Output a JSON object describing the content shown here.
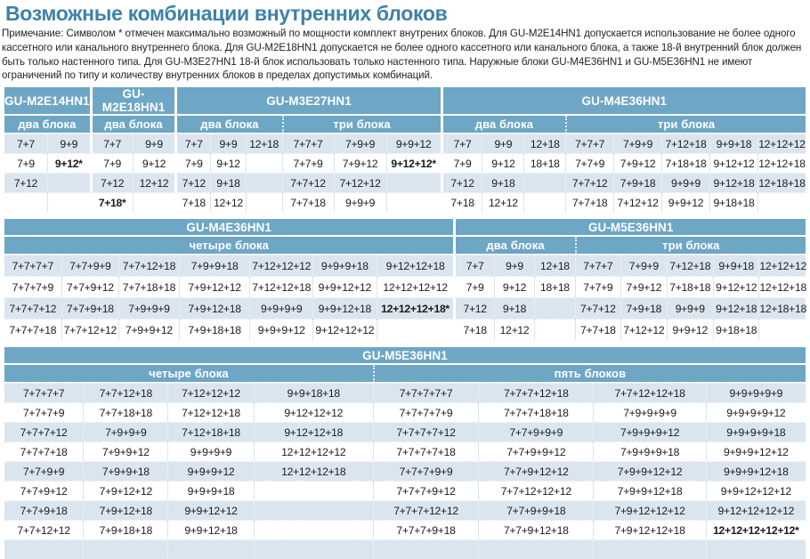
{
  "title": "Возможные комбинации внутренних блоков",
  "note": "Примечание: Символом * отмечен максимально возможный по мощности комплект внутрених блоков. Для GU-M2E14HN1 допускается использование не более одного кассетного или канального внутреннего блока. Для GU-M2E18HN1 допускается не более одного кассетного или канального блока, а также 18-й внутренний блок должен быть только настенного типа. Для GU-M3E27HN1 18-й блок использовать только настенного типа. Наружные блоки GU-M4E36HN1 и GU-M5E36HN1 не имеют ограничений по типу и количеству внутренних блоков в пределах допустимых комбинаций.",
  "colors": {
    "header_blue": "#6ea6c6",
    "row_alt_blue": "#dbe5ef",
    "title_blue": "#3e81a9",
    "text": "#1c1c1c"
  },
  "tables": [
    {
      "name": "combinations-table-1",
      "css": "t1",
      "sections": [
        {
          "product": "GU-M2E14HN1",
          "groups": [
            {
              "label": "два блока",
              "widths": [
                47,
                47
              ]
            }
          ]
        },
        {
          "product": "GU-M2E18HN1",
          "groups": [
            {
              "label": "два блока",
              "widths": [
                47,
                47
              ]
            }
          ]
        },
        {
          "product": "GU-M3E27HN1",
          "groups": [
            {
              "label": "два блока",
              "widths": [
                39,
                39,
                40
              ]
            },
            {
              "label": "три блока",
              "widths": [
                57,
                58,
                60
              ]
            }
          ]
        },
        {
          "product": "GU-M4E36HN1",
          "groups": [
            {
              "label": "два блока",
              "widths": [
                46,
                46,
                46
              ]
            },
            {
              "label": "три блока",
              "widths": [
                53,
                53,
                53,
                53,
                53
              ]
            }
          ]
        }
      ],
      "rows": [
        [
          "7+7",
          "9+9",
          "7+7",
          "9+9",
          "7+7",
          "9+9",
          "12+18",
          "7+7+7",
          "7+9+9",
          "9+9+12",
          "7+7",
          "9+9",
          "12+18",
          "7+7+7",
          "7+9+9",
          "7+12+18",
          "9+9+18",
          "12+12+12"
        ],
        [
          "7+9",
          "9+12*",
          "7+9",
          "9+12",
          "7+9",
          "9+12",
          "",
          "7+7+9",
          "7+9+12",
          "9+12+12*",
          "7+9",
          "9+12",
          "18+18",
          "7+7+9",
          "7+9+12",
          "7+18+18",
          "9+12+12",
          "12+12+18"
        ],
        [
          "7+12",
          "",
          "7+12",
          "12+12",
          "7+12",
          "9+18",
          "",
          "7+7+12",
          "7+12+12",
          "",
          "7+12",
          "9+18",
          "",
          "7+7+12",
          "7+9+18",
          "9+9+9",
          "9+12+18",
          "12+18+18"
        ],
        [
          "",
          "",
          "7+18*",
          "",
          "7+18",
          "12+12",
          "",
          "7+7+18",
          "9+9+9",
          "",
          "7+18",
          "12+12",
          "",
          "7+7+18",
          "7+12+12",
          "9+9+12",
          "9+18+18",
          ""
        ]
      ]
    },
    {
      "name": "combinations-table-2",
      "css": "t2",
      "sections": [
        {
          "product": "GU-M4E36HN1",
          "groups": [
            {
              "label": "четыре блока",
              "widths": [
                63,
                64,
                67,
                79,
                70,
                71,
                86
              ]
            }
          ]
        },
        {
          "product": "GU-M5E36HN1",
          "groups": [
            {
              "label": "два блока",
              "widths": [
                45,
                45,
                45
              ]
            },
            {
              "label": "три блока",
              "widths": [
                51,
                51,
                52,
                51,
                52
              ]
            }
          ]
        }
      ],
      "rows": [
        [
          "7+7+7+7",
          "7+7+9+9",
          "7+7+12+18",
          "7+9+9+18",
          "7+12+12+12",
          "9+9+9+18",
          "9+12+12+18",
          "7+7",
          "9+9",
          "12+18",
          "7+7+7",
          "7+9+9",
          "7+12+18",
          "9+9+18",
          "12+12+12"
        ],
        [
          "7+7+7+9",
          "7+7+9+12",
          "7+7+18+18",
          "7+9+12+12",
          "7+12+12+18",
          "9+9+12+12",
          "12+12+12+12",
          "7+9",
          "9+12",
          "18+18",
          "7+7+9",
          "7+9+12",
          "7+18+18",
          "9+12+12",
          "12+12+18"
        ],
        [
          "7+7+7+12",
          "7+7+9+18",
          "7+9+9+9",
          "7+9+12+18",
          "9+9+9+9",
          "9+9+12+18",
          "12+12+12+18*",
          "7+12",
          "9+18",
          "",
          "7+7+12",
          "7+9+18",
          "9+9+9",
          "9+12+18",
          "12+18+18"
        ],
        [
          "7+7+7+18",
          "7+7+12+12",
          "7+9+9+12",
          "7+9+18+18",
          "9+9+9+12",
          "9+12+12+12",
          "",
          "7+18",
          "12+12",
          "",
          "7+7+18",
          "7+12+12",
          "9+9+12",
          "9+18+18",
          ""
        ]
      ]
    },
    {
      "name": "combinations-table-3",
      "css": "t3",
      "sections": [
        {
          "product": "GU-M5E36HN1",
          "groups": [
            {
              "label": "четыре блока",
              "widths": [
                88,
                95,
                96,
                134
              ]
            },
            {
              "label": "пять блоков",
              "widths": [
                118,
                129,
                126,
                112
              ]
            }
          ]
        }
      ],
      "rows": [
        [
          "7+7+7+7",
          "7+7+12+18",
          "7+12+12+12",
          "9+9+18+18",
          "7+7+7+7+7",
          "7+7+7+12+18",
          "7+7+12+12+18",
          "9+9+9+9+9"
        ],
        [
          "7+7+7+9",
          "7+7+18+18",
          "7+12+12+18",
          "9+12+12+12",
          "7+7+7+7+9",
          "7+7+7+18+18",
          "7+9+9+9+9",
          "9+9+9+9+12"
        ],
        [
          "7+7+7+12",
          "7+9+9+9",
          "7+12+18+18",
          "9+12+12+18",
          "7+7+7+7+12",
          "7+7+9+9+9",
          "7+9+9+9+12",
          "9+9+9+9+18"
        ],
        [
          "7+7+7+18",
          "7+9+9+12",
          "9+9+9+9",
          "12+12+12+12",
          "7+7+7+7+18",
          "7+7+9+9+12",
          "7+9+9+9+18",
          "9+9+9+12+12"
        ],
        [
          "7+7+9+9",
          "7+9+9+18",
          "9+9+9+12",
          "12+12+12+18",
          "7+7+7+9+9",
          "7+7+9+12+12",
          "7+9+9+12+12",
          "9+9+9+12+18"
        ],
        [
          "7+7+9+12",
          "7+9+12+12",
          "9+9+9+18",
          "",
          "7+7+7+9+12",
          "7+7+12+12+12",
          "7+9+9+12+18",
          "9+9+12+12+12"
        ],
        [
          "7+7+9+18",
          "7+9+12+18",
          "9+9+12+12",
          "",
          "7+7+7+12+12",
          "7+7+9+9+18",
          "7+9+12+12+12",
          "9+12+12+12+12"
        ],
        [
          "7+7+12+12",
          "7+9+18+18",
          "9+9+12+18",
          "",
          "7+7+7+9+18",
          "7+7+9+12+18",
          "7+9+12+12+18",
          "12+12+12+12+12*"
        ],
        [
          "",
          "",
          "",
          "",
          "",
          "",
          "",
          ""
        ]
      ]
    }
  ]
}
